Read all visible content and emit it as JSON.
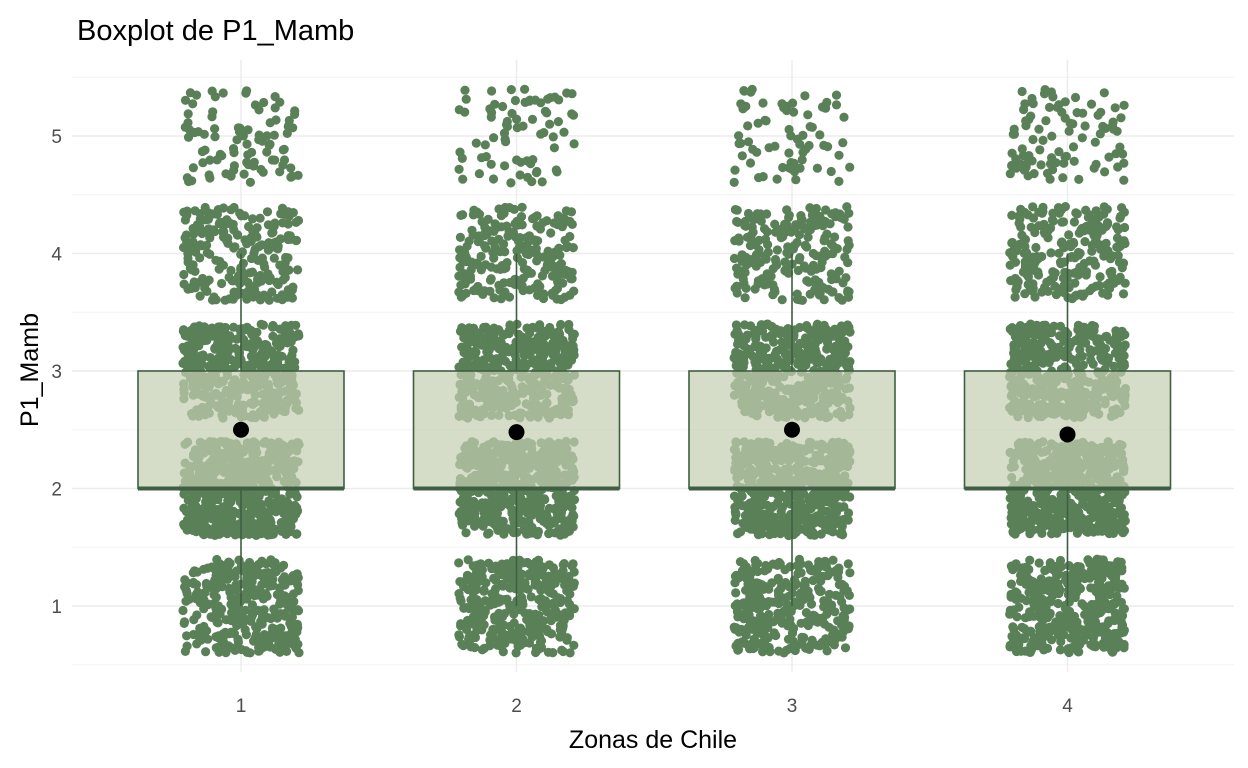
{
  "chart_data": {
    "type": "boxplot",
    "title": "Boxplot de P1_Mamb",
    "xlabel": "Zonas de Chile",
    "ylabel": "P1_Mamb",
    "categories": [
      "1",
      "2",
      "3",
      "4"
    ],
    "y_ticks": [
      "1",
      "2",
      "3",
      "4",
      "5"
    ],
    "ylim": [
      0.5,
      5.5
    ],
    "grid": true,
    "boxes": [
      {
        "category": "1",
        "whisker_low": 1,
        "q1": 2,
        "median": 2,
        "q3": 3,
        "whisker_high": 4,
        "mean": 2.5
      },
      {
        "category": "2",
        "whisker_low": 1,
        "q1": 2,
        "median": 2,
        "q3": 3,
        "whisker_high": 4,
        "mean": 2.48
      },
      {
        "category": "3",
        "whisker_low": 1,
        "q1": 2,
        "median": 2,
        "q3": 3,
        "whisker_high": 4,
        "mean": 2.5
      },
      {
        "category": "4",
        "whisker_low": 1,
        "q1": 2,
        "median": 2,
        "q3": 3,
        "whisker_high": 4,
        "mean": 2.46
      }
    ],
    "jitter_counts_by_level": {
      "1": {
        "1": 320,
        "2": 520,
        "3": 420,
        "4": 230,
        "5": 90
      },
      "2": {
        "1": 330,
        "2": 530,
        "3": 430,
        "4": 220,
        "5": 75
      },
      "3": {
        "1": 300,
        "2": 520,
        "3": 420,
        "4": 210,
        "5": 70
      },
      "4": {
        "1": 400,
        "2": 520,
        "3": 410,
        "4": 230,
        "5": 95
      }
    },
    "colors": {
      "points": "#5a8058",
      "box_fill": "#c3ceb1",
      "box_stroke": "#3f5f43",
      "mean_point": "#000000"
    }
  }
}
